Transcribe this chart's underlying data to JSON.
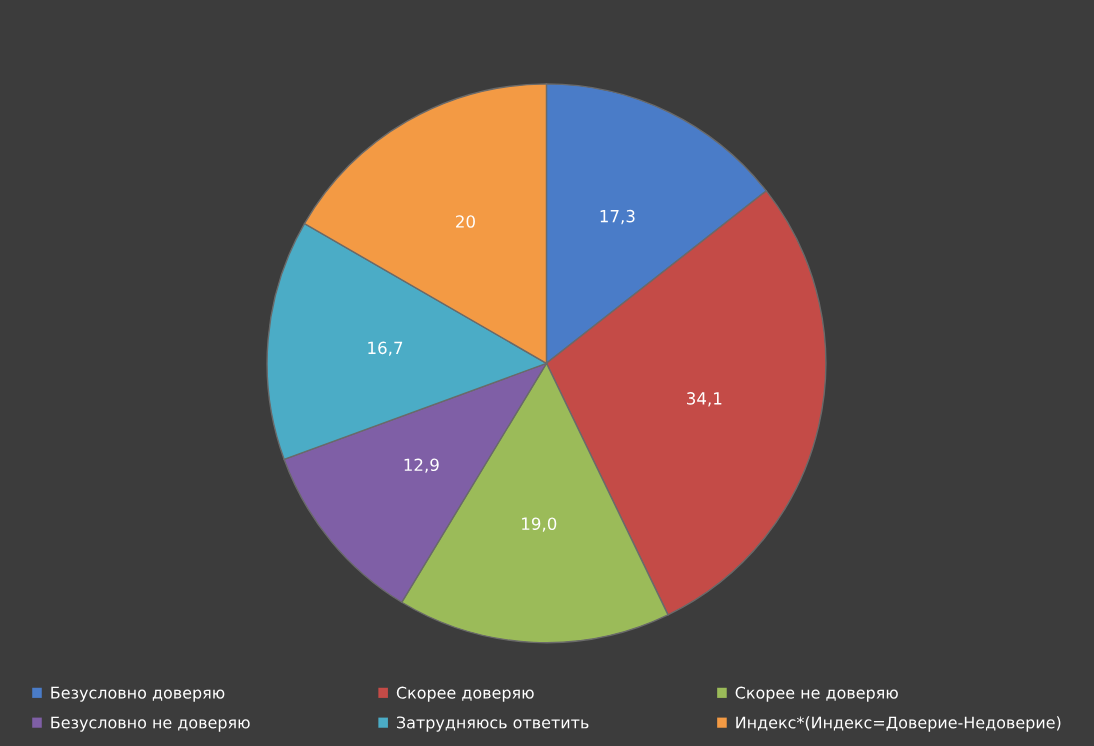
{
  "chart_data": {
    "type": "pie",
    "categories": [
      "Безусловно доверяю",
      "Скорее доверяю",
      "Скорее не доверяю",
      "Безусловно не доверяю",
      "Затрудняюсь ответить",
      "Индекс*(Индекс=Доверие-Недоверие)"
    ],
    "values": [
      17.3,
      34.1,
      19.0,
      12.9,
      16.7,
      20
    ],
    "value_labels": [
      "17,3",
      "34,1",
      "19,0",
      "12,9",
      "16,7",
      "20"
    ],
    "colors": [
      "#4a7cc8",
      "#c44b47",
      "#9bbb59",
      "#7f5fa6",
      "#4bacc6",
      "#f39a44"
    ],
    "legend": "bottom"
  }
}
